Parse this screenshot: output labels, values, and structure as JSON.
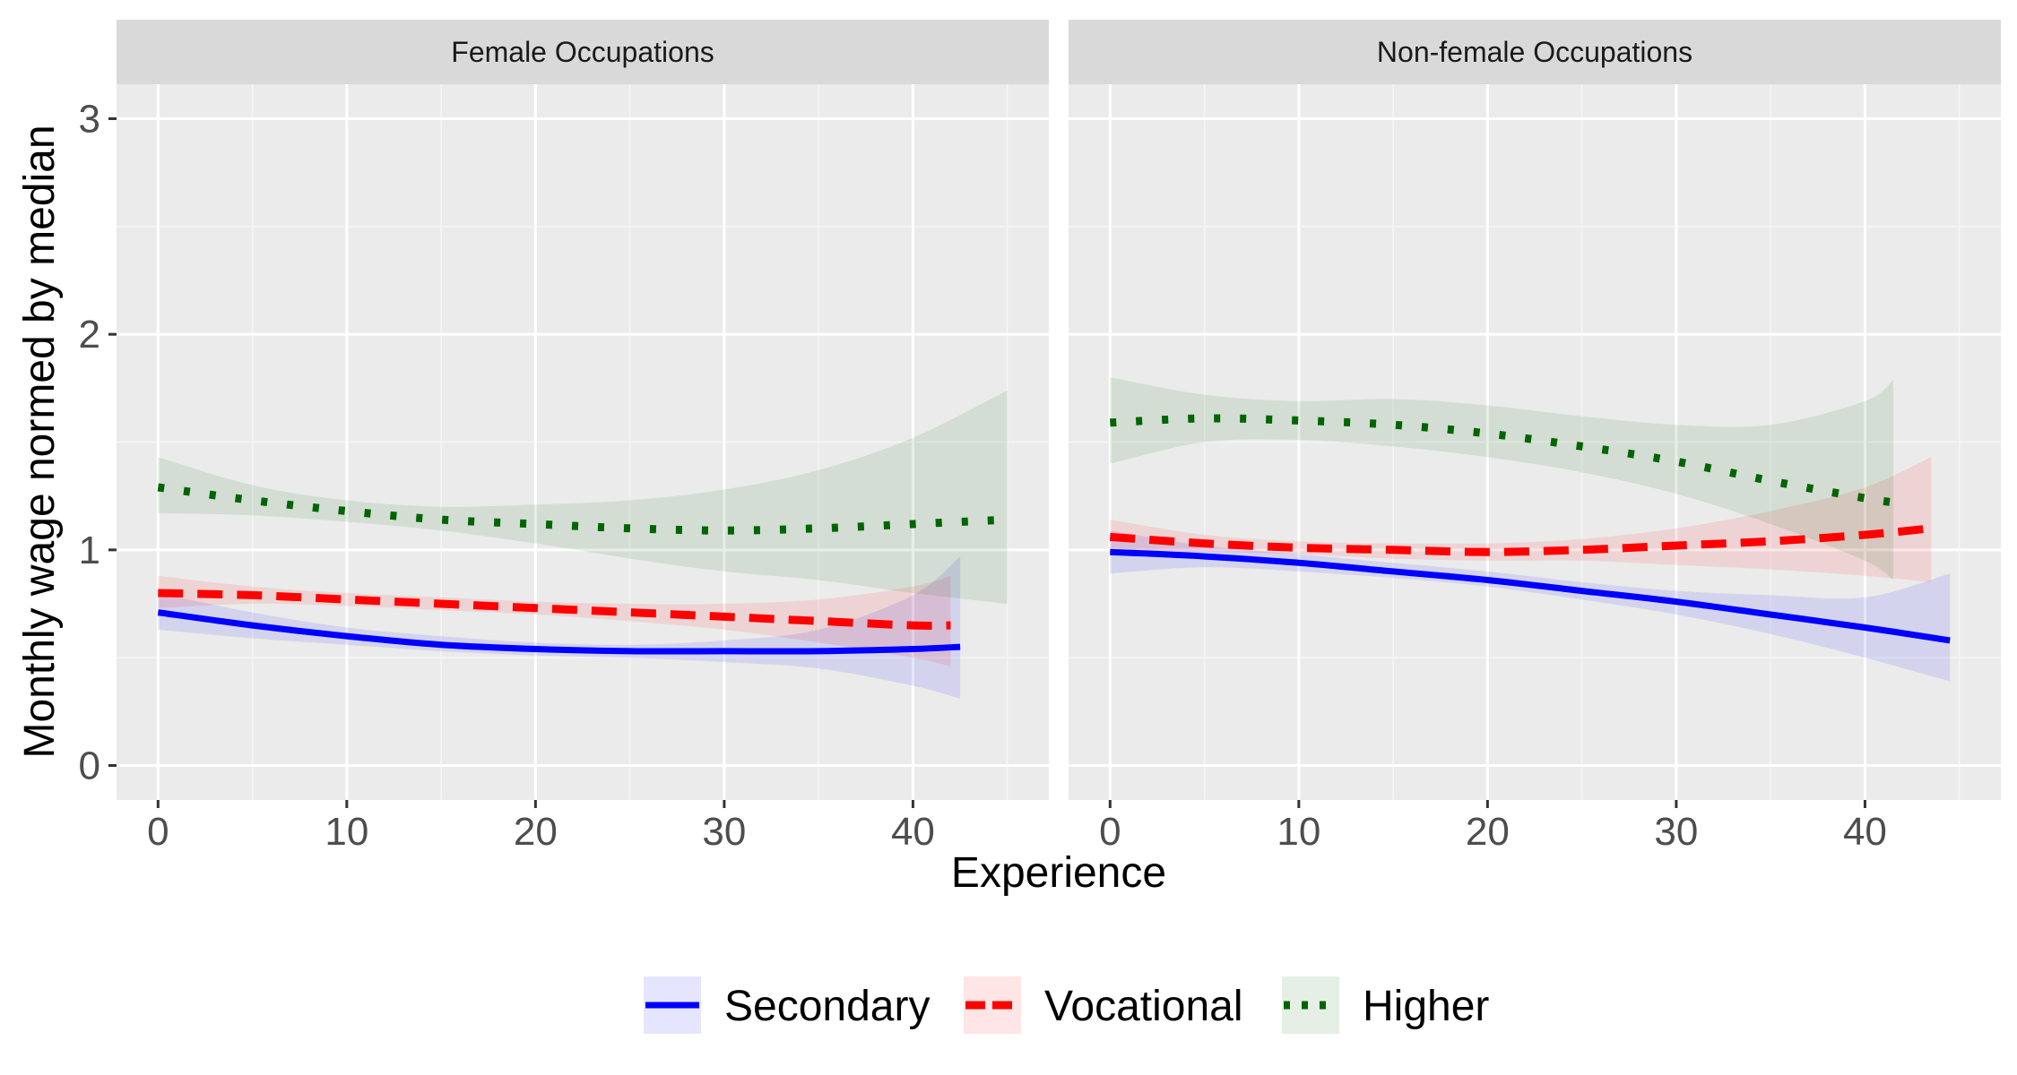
{
  "chart_data": {
    "type": "line",
    "xlabel": "Experience",
    "ylabel": "Monthly wage normed by median",
    "xlim": [
      -2.2,
      47.2
    ],
    "ylim": [
      -0.16,
      3.16
    ],
    "x_ticks": [
      "0",
      "10",
      "20",
      "30",
      "40"
    ],
    "y_ticks": [
      "0",
      "1",
      "2",
      "3"
    ],
    "grid": true,
    "legend_position": "bottom",
    "legend": [
      {
        "name": "Secondary",
        "color": "#0000FF",
        "dash": "solid"
      },
      {
        "name": "Vocational",
        "color": "#FF0000",
        "dash": "dashed"
      },
      {
        "name": "Higher",
        "color": "#006400",
        "dash": "dotted"
      }
    ],
    "panels": [
      {
        "title": "Female Occupations",
        "series": [
          {
            "name": "Secondary",
            "x": [
              0,
              5,
              10,
              15,
              20,
              25,
              30,
              35,
              40,
              42.5
            ],
            "y": [
              0.71,
              0.65,
              0.6,
              0.56,
              0.54,
              0.53,
              0.53,
              0.53,
              0.54,
              0.55
            ],
            "lower": [
              0.63,
              0.59,
              0.56,
              0.53,
              0.51,
              0.5,
              0.48,
              0.45,
              0.37,
              0.31
            ],
            "upper": [
              0.8,
              0.71,
              0.64,
              0.6,
              0.57,
              0.56,
              0.58,
              0.63,
              0.79,
              0.97
            ]
          },
          {
            "name": "Vocational",
            "x": [
              0,
              5,
              10,
              15,
              20,
              25,
              30,
              35,
              40,
              42
            ],
            "y": [
              0.8,
              0.79,
              0.77,
              0.75,
              0.73,
              0.71,
              0.69,
              0.67,
              0.65,
              0.65
            ],
            "lower": [
              0.73,
              0.75,
              0.74,
              0.72,
              0.7,
              0.67,
              0.63,
              0.57,
              0.5,
              0.46
            ],
            "upper": [
              0.88,
              0.83,
              0.8,
              0.78,
              0.76,
              0.75,
              0.75,
              0.77,
              0.83,
              0.88
            ]
          },
          {
            "name": "Higher",
            "x": [
              0,
              5,
              10,
              15,
              20,
              25,
              30,
              35,
              40,
              45
            ],
            "y": [
              1.29,
              1.23,
              1.18,
              1.14,
              1.12,
              1.1,
              1.09,
              1.1,
              1.12,
              1.14
            ],
            "lower": [
              1.17,
              1.16,
              1.13,
              1.09,
              1.03,
              0.96,
              0.9,
              0.86,
              0.8,
              0.75
            ],
            "upper": [
              1.43,
              1.3,
              1.23,
              1.2,
              1.21,
              1.23,
              1.28,
              1.37,
              1.52,
              1.74
            ]
          }
        ]
      },
      {
        "title": "Non-female Occupations",
        "series": [
          {
            "name": "Secondary",
            "x": [
              0,
              5,
              10,
              15,
              20,
              25,
              30,
              35,
              40,
              44.5
            ],
            "y": [
              0.99,
              0.97,
              0.94,
              0.9,
              0.86,
              0.81,
              0.76,
              0.7,
              0.64,
              0.58
            ],
            "lower": [
              0.89,
              0.92,
              0.9,
              0.87,
              0.83,
              0.77,
              0.7,
              0.61,
              0.5,
              0.39
            ],
            "upper": [
              1.09,
              1.02,
              0.98,
              0.94,
              0.9,
              0.85,
              0.81,
              0.79,
              0.78,
              0.89
            ]
          },
          {
            "name": "Vocational",
            "x": [
              0,
              5,
              10,
              15,
              20,
              25,
              30,
              35,
              40,
              43.5
            ],
            "y": [
              1.06,
              1.03,
              1.01,
              1.0,
              0.99,
              1.0,
              1.02,
              1.04,
              1.07,
              1.1
            ],
            "lower": [
              0.98,
              0.99,
              0.98,
              0.96,
              0.95,
              0.95,
              0.93,
              0.91,
              0.88,
              0.85
            ],
            "upper": [
              1.14,
              1.07,
              1.04,
              1.03,
              1.03,
              1.05,
              1.1,
              1.18,
              1.29,
              1.43
            ]
          },
          {
            "name": "Higher",
            "x": [
              0,
              5,
              10,
              15,
              20,
              25,
              30,
              35,
              40,
              41.5
            ],
            "y": [
              1.59,
              1.61,
              1.6,
              1.58,
              1.54,
              1.48,
              1.41,
              1.32,
              1.24,
              1.22
            ],
            "lower": [
              1.4,
              1.5,
              1.51,
              1.48,
              1.43,
              1.36,
              1.26,
              1.12,
              0.95,
              0.86
            ],
            "upper": [
              1.8,
              1.72,
              1.69,
              1.7,
              1.67,
              1.62,
              1.58,
              1.58,
              1.69,
              1.79
            ]
          }
        ]
      }
    ]
  }
}
